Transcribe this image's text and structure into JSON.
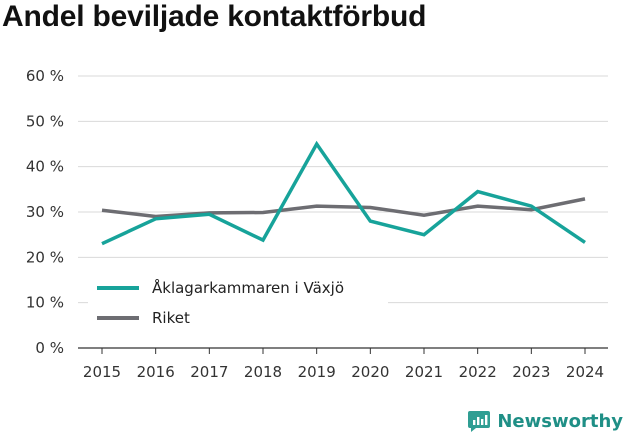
{
  "chart_data": {
    "type": "line",
    "title": "Andel beviljade kontaktförbud",
    "xlabel": "",
    "ylabel": "",
    "x": [
      "2015",
      "2016",
      "2017",
      "2018",
      "2019",
      "2020",
      "2021",
      "2022",
      "2023",
      "2024"
    ],
    "y_ticks": [
      "0 %",
      "10 %",
      "20 %",
      "30 %",
      "40 %",
      "50 %",
      "60 %"
    ],
    "ylim": [
      0,
      60
    ],
    "grid": true,
    "legend_position": "bottom-left",
    "series": [
      {
        "name": "Åklagarkammaren i Växjö",
        "color": "#17a39a",
        "values": [
          23.0,
          28.5,
          29.5,
          23.8,
          45.0,
          28.0,
          25.0,
          34.5,
          31.3,
          23.3
        ]
      },
      {
        "name": "Riket",
        "color": "#6d6d72",
        "values": [
          30.4,
          29.0,
          29.8,
          29.9,
          31.3,
          31.0,
          29.3,
          31.3,
          30.5,
          32.9
        ]
      }
    ]
  },
  "brand": {
    "name": "Newsworthy",
    "icon": "newsworthy-logo-icon",
    "color": "#1f8f86"
  }
}
